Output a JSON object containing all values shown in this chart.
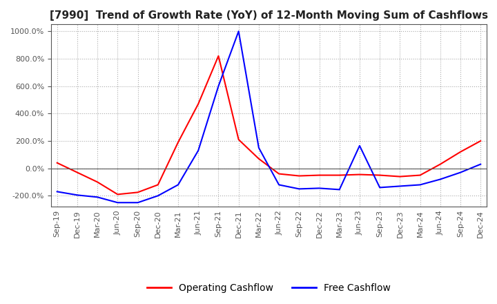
{
  "title": "[7990]  Trend of Growth Rate (YoY) of 12-Month Moving Sum of Cashflows",
  "title_fontsize": 11,
  "ylim": [
    -280,
    1050
  ],
  "yticks": [
    -200,
    0,
    200,
    400,
    600,
    800,
    1000
  ],
  "background_color": "#ffffff",
  "grid_color": "#aaaaaa",
  "legend_labels": [
    "Operating Cashflow",
    "Free Cashflow"
  ],
  "legend_colors": [
    "#ff0000",
    "#0000ff"
  ],
  "x_labels": [
    "Sep-19",
    "Dec-19",
    "Mar-20",
    "Jun-20",
    "Sep-20",
    "Dec-20",
    "Mar-21",
    "Jun-21",
    "Sep-21",
    "Dec-21",
    "Mar-22",
    "Jun-22",
    "Sep-22",
    "Dec-22",
    "Mar-23",
    "Jun-23",
    "Sep-23",
    "Dec-23",
    "Mar-24",
    "Jun-24",
    "Sep-24",
    "Dec-24"
  ],
  "operating_cashflow": [
    40,
    -30,
    -100,
    -190,
    -175,
    -120,
    190,
    470,
    820,
    210,
    70,
    -40,
    -55,
    -50,
    -50,
    -45,
    -50,
    -60,
    -50,
    30,
    120,
    200
  ],
  "free_cashflow": [
    -170,
    -195,
    -210,
    -250,
    -250,
    -200,
    -120,
    130,
    600,
    1000,
    150,
    -120,
    -150,
    -145,
    -155,
    165,
    -140,
    -130,
    -120,
    -80,
    -30,
    30
  ]
}
